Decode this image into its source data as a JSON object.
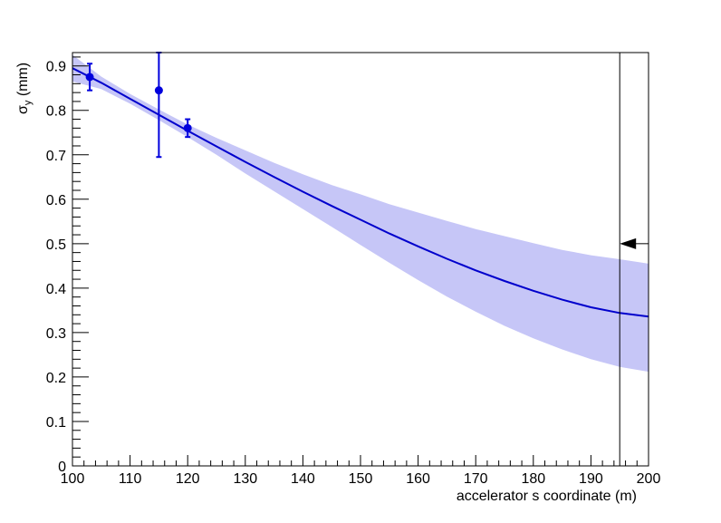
{
  "chart_data": {
    "type": "line",
    "xlabel": "accelerator s coordinate (m)",
    "ylabel": "σ_y (mm)",
    "ylabel_main": "σ",
    "ylabel_sub": "y",
    "ylabel_unit": " (mm)",
    "xlim": [
      100,
      200
    ],
    "ylim": [
      0,
      0.93
    ],
    "xticks": [
      100,
      110,
      120,
      130,
      140,
      150,
      160,
      170,
      180,
      190,
      200
    ],
    "yticks": [
      0,
      0.1,
      0.2,
      0.3,
      0.4,
      0.5,
      0.6,
      0.7,
      0.8,
      0.9
    ],
    "colors": {
      "band": "#c6c6f7",
      "line": "#0000cc",
      "points": "#0000dd",
      "frame": "#000000"
    },
    "fit": {
      "x": [
        100,
        105,
        110,
        115,
        120,
        125,
        130,
        135,
        140,
        145,
        150,
        155,
        160,
        165,
        170,
        175,
        180,
        185,
        190,
        195,
        200
      ],
      "y": [
        0.895,
        0.862,
        0.826,
        0.79,
        0.754,
        0.719,
        0.684,
        0.65,
        0.617,
        0.585,
        0.554,
        0.523,
        0.494,
        0.466,
        0.44,
        0.416,
        0.394,
        0.374,
        0.357,
        0.344,
        0.336
      ],
      "band_low": [
        0.865,
        0.848,
        0.815,
        0.778,
        0.74,
        0.7,
        0.658,
        0.618,
        0.578,
        0.538,
        0.497,
        0.457,
        0.418,
        0.381,
        0.347,
        0.315,
        0.287,
        0.262,
        0.24,
        0.223,
        0.212
      ],
      "band_high": [
        0.925,
        0.876,
        0.837,
        0.802,
        0.768,
        0.738,
        0.71,
        0.682,
        0.656,
        0.632,
        0.611,
        0.589,
        0.57,
        0.551,
        0.533,
        0.517,
        0.501,
        0.486,
        0.474,
        0.465,
        0.455
      ]
    },
    "points": [
      {
        "x": 103,
        "y": 0.875,
        "yerr_low": 0.845,
        "yerr_high": 0.905
      },
      {
        "x": 115,
        "y": 0.845,
        "yerr_low": 0.695,
        "yerr_high": 0.93
      },
      {
        "x": 120,
        "y": 0.76,
        "yerr_low": 0.74,
        "yerr_high": 0.78
      }
    ],
    "vline_x": 195,
    "arrow_marker": {
      "x_from": 200,
      "x_to": 195,
      "y": 0.5
    }
  }
}
